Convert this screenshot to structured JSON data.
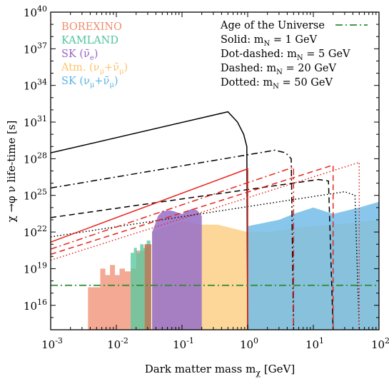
{
  "chart_data": {
    "type": "line",
    "xlabel": "Dark matter mass m",
    "xlabel_sub": "χ",
    "xlabel_unit": " [GeV]",
    "ylabel": "χ →φ ν life-time [s]",
    "x_scale": "log",
    "y_scale": "log",
    "xlim": [
      0.001,
      100
    ],
    "ylim": [
      100000000000000.0,
      1e+40
    ],
    "x_ticks": [
      {
        "value": 0.001,
        "base": "10",
        "exp": "-3"
      },
      {
        "value": 0.01,
        "base": "10",
        "exp": "-2"
      },
      {
        "value": 0.1,
        "base": "10",
        "exp": "-1"
      },
      {
        "value": 1,
        "base": "10",
        "exp": "0"
      },
      {
        "value": 10,
        "base": "10",
        "exp": "1"
      },
      {
        "value": 100,
        "base": "10",
        "exp": "2"
      }
    ],
    "y_ticks": [
      {
        "value": 1e+16,
        "base": "10",
        "exp": "16"
      },
      {
        "value": 1e+19,
        "base": "10",
        "exp": "19"
      },
      {
        "value": 1e+22,
        "base": "10",
        "exp": "22"
      },
      {
        "value": 1e+25,
        "base": "10",
        "exp": "25"
      },
      {
        "value": 1e+28,
        "base": "10",
        "exp": "28"
      },
      {
        "value": 1e+31,
        "base": "10",
        "exp": "31"
      },
      {
        "value": 1e+34,
        "base": "10",
        "exp": "34"
      },
      {
        "value": 1e+37,
        "base": "10",
        "exp": "37"
      },
      {
        "value": 1e+40,
        "base": "10",
        "exp": "40"
      }
    ],
    "regions": [
      {
        "name": "BOREXINO",
        "color": "#ef8c6f",
        "opacity": 0.75,
        "points": [
          [
            0.0037,
            3e+17
          ],
          [
            0.0057,
            3e+17
          ],
          [
            0.0057,
            1e+19
          ],
          [
            0.0068,
            1e+19
          ],
          [
            0.0068,
            3e+18
          ],
          [
            0.008,
            3e+18
          ],
          [
            0.008,
            2e+19
          ],
          [
            0.0095,
            2e+19
          ],
          [
            0.0095,
            3e+18
          ],
          [
            0.0112,
            3e+18
          ],
          [
            0.0112,
            1e+19
          ],
          [
            0.0135,
            1e+19
          ],
          [
            0.0135,
            6e+18
          ],
          [
            0.0165,
            6e+18
          ],
          [
            0.0165,
            1e+19
          ],
          [
            0.02,
            1e+19
          ],
          [
            0.02,
            3e+20
          ],
          [
            0.027,
            3e+20
          ],
          [
            0.027,
            1e+21
          ],
          [
            0.034,
            1e+21
          ],
          [
            0.034,
            100000000000000.0
          ],
          [
            0.0037,
            100000000000000.0
          ]
        ]
      },
      {
        "name": "KAMLAND",
        "color": "#5cc9a0",
        "opacity": 0.8,
        "points": [
          [
            0.0165,
            100000000000000.0
          ],
          [
            0.0165,
            2e+20
          ],
          [
            0.0185,
            2e+20
          ],
          [
            0.0185,
            5e+20
          ],
          [
            0.0205,
            5e+20
          ],
          [
            0.0205,
            2e+20
          ],
          [
            0.023,
            2e+20
          ],
          [
            0.023,
            1e+21
          ],
          [
            0.026,
            1e+21
          ],
          [
            0.026,
            5e+20
          ],
          [
            0.029,
            5e+20
          ],
          [
            0.029,
            2e+21
          ],
          [
            0.033,
            2e+21
          ],
          [
            0.033,
            100000000000000.0
          ]
        ]
      },
      {
        "name": "Atm.",
        "color": "#fcc46e",
        "opacity": 0.7,
        "points": [
          [
            0.035,
            100000000000000.0
          ],
          [
            0.035,
            1e+22
          ],
          [
            0.1,
            8e+22
          ],
          [
            0.19,
            4e+22
          ],
          [
            0.35,
            4e+22
          ],
          [
            1,
            1e+22
          ],
          [
            2,
            1e+22
          ],
          [
            5,
            2e+22
          ],
          [
            10,
            3e+22
          ],
          [
            30,
            5e+22
          ],
          [
            100,
            1e+23
          ],
          [
            100,
            100000000000000.0
          ]
        ]
      },
      {
        "name": "SK-mu",
        "color": "#73bde8",
        "opacity": 0.85,
        "points": [
          [
            1,
            100000000000000.0
          ],
          [
            1,
            3e+22
          ],
          [
            3,
            1e+23
          ],
          [
            5,
            3e+23
          ],
          [
            10,
            1e+24
          ],
          [
            20,
            3e+23
          ],
          [
            50,
            1e+24
          ],
          [
            100,
            3e+24
          ],
          [
            100,
            100000000000000.0
          ]
        ]
      },
      {
        "name": "SK-e",
        "color": "#9a72c7",
        "opacity": 0.88,
        "points": [
          [
            0.035,
            100000000000000.0
          ],
          [
            0.035,
            1e+22
          ],
          [
            0.038,
            3e+22
          ],
          [
            0.043,
            2e+23
          ],
          [
            0.05,
            5e+23
          ],
          [
            0.065,
            6e+23
          ],
          [
            0.075,
            5e+23
          ],
          [
            0.1,
            3e+23
          ],
          [
            0.12,
            5e+23
          ],
          [
            0.14,
            8e+23
          ],
          [
            0.17,
            6e+23
          ],
          [
            0.2,
            2e+23
          ],
          [
            0.2,
            100000000000000.0
          ]
        ]
      },
      {
        "name": "BOREXINO-dark",
        "color": "#bf7555",
        "opacity": 0.8,
        "points": [
          [
            0.027,
            100000000000000.0
          ],
          [
            0.027,
            1e+21
          ],
          [
            0.034,
            1e+21
          ],
          [
            0.034,
            100000000000000.0
          ]
        ]
      }
    ],
    "series": [
      {
        "color": "#000000",
        "dash": "solid",
        "points": [
          [
            0.001,
            3e+28
          ],
          [
            0.5,
            7e+31
          ],
          [
            0.7,
            1e+31
          ],
          [
            0.87,
            1e+30
          ],
          [
            0.97,
            1e+29
          ],
          [
            1,
            100000000000000.0
          ]
        ]
      },
      {
        "color": "#000000",
        "dash": "dashdot",
        "points": [
          [
            0.001,
            4e+25
          ],
          [
            2.6,
            5e+28
          ],
          [
            3.8,
            3e+28
          ],
          [
            4.6,
            1e+28
          ],
          [
            5,
            100000000000000.0
          ]
        ]
      },
      {
        "color": "#000000",
        "dash": "dashed",
        "points": [
          [
            0.001,
            1.5e+23
          ],
          [
            12,
            2e+26
          ],
          [
            17,
            1.5e+26
          ],
          [
            20,
            100000000000000.0
          ]
        ]
      },
      {
        "color": "#000000",
        "dash": "dotted",
        "points": [
          [
            0.001,
            4e+21
          ],
          [
            30,
            2e+25
          ],
          [
            43,
            1e+25
          ],
          [
            50,
            100000000000000.0
          ]
        ]
      },
      {
        "color": "#e8231c",
        "dash": "solid",
        "points": [
          [
            0.001,
            1.5e+21
          ],
          [
            1,
            1.5e+27
          ],
          [
            1,
            100000000000000.0
          ]
        ]
      },
      {
        "color": "#e8231c",
        "dash": "dashdot",
        "points": [
          [
            0.001,
            4e+20
          ],
          [
            5,
            2e+27
          ],
          [
            5,
            100000000000000.0
          ]
        ]
      },
      {
        "color": "#e8231c",
        "dash": "dashed",
        "points": [
          [
            0.001,
            1.5e+20
          ],
          [
            20,
            3e+27
          ],
          [
            20,
            100000000000000.0
          ]
        ]
      },
      {
        "color": "#e8231c",
        "dash": "dotted",
        "points": [
          [
            0.001,
            5e+19
          ],
          [
            50,
            5e+27
          ],
          [
            50,
            100000000000000.0
          ]
        ]
      }
    ],
    "age_line": {
      "y": 4.35e+17,
      "color": "#2e8b2e"
    },
    "legend_left": [
      {
        "label": "BOREXINO",
        "color": "#ef8c6f"
      },
      {
        "label": "KAMLAND",
        "color": "#4fc49a"
      },
      {
        "label": "SK (ν̄",
        "sub": "e",
        "tail": ")",
        "color": "#9a62c7"
      },
      {
        "label": "Atm. (ν",
        "sub": "μ",
        "mid": "+ν̄",
        "sub2": "μ",
        "tail": ")",
        "color": "#fcc46e"
      },
      {
        "label": "SK (ν",
        "sub": "μ",
        "mid": "+ν̄",
        "sub2": "μ",
        "tail": ")",
        "color": "#5ab3e6"
      }
    ],
    "legend_right": {
      "age_label": "Age of the Universe",
      "items": [
        {
          "prefix": "Solid: m",
          "sub": "N",
          "suffix": " = 1 GeV"
        },
        {
          "prefix": "Dot-dashed: m",
          "sub": "N",
          "suffix": " = 5 GeV"
        },
        {
          "prefix": "Dashed: m",
          "sub": "N",
          "suffix": " = 20 GeV"
        },
        {
          "prefix": "Dotted: m",
          "sub": "N",
          "suffix": " = 50 GeV"
        }
      ]
    }
  }
}
